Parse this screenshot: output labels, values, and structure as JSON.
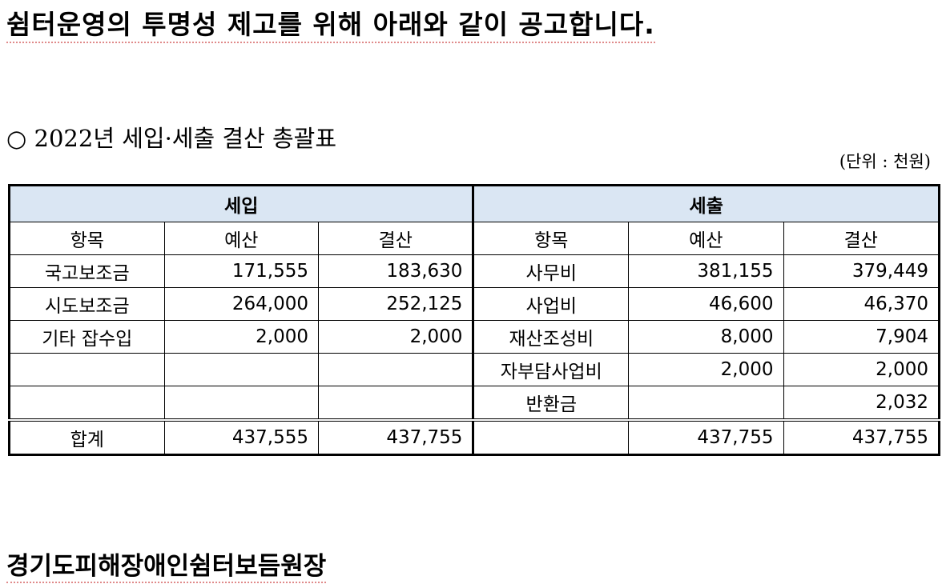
{
  "headline": "쉼터운영의 투명성 제고를 위해 아래와 같이 공고합니다.",
  "section_title": "○ 2022년 세입·세출 결산 총괄표",
  "unit_note": "(단위 : 천원)",
  "table": {
    "income_header": "세입",
    "expense_header": "세출",
    "columns": {
      "item": "항목",
      "budget": "예산",
      "settlement": "결산"
    },
    "rows": [
      {
        "in_item": "국고보조금",
        "in_budget": "171,555",
        "in_settle": "183,630",
        "ex_item": "사무비",
        "ex_budget": "381,155",
        "ex_settle": "379,449"
      },
      {
        "in_item": "시도보조금",
        "in_budget": "264,000",
        "in_settle": "252,125",
        "ex_item": "사업비",
        "ex_budget": "46,600",
        "ex_settle": "46,370"
      },
      {
        "in_item": "기타 잡수입",
        "in_budget": "2,000",
        "in_settle": "2,000",
        "ex_item": "재산조성비",
        "ex_budget": "8,000",
        "ex_settle": "7,904"
      },
      {
        "in_item": "",
        "in_budget": "",
        "in_settle": "",
        "ex_item": "자부담사업비",
        "ex_budget": "2,000",
        "ex_settle": "2,000"
      },
      {
        "in_item": "",
        "in_budget": "",
        "in_settle": "",
        "ex_item": "반환금",
        "ex_budget": "",
        "ex_settle": "2,032"
      }
    ],
    "total": {
      "label": "합계",
      "in_budget": "437,555",
      "in_settle": "437,755",
      "ex_item": "",
      "ex_budget": "437,755",
      "ex_settle": "437,755"
    }
  },
  "footer": "경기도피해장애인쉼터보듬원장"
}
